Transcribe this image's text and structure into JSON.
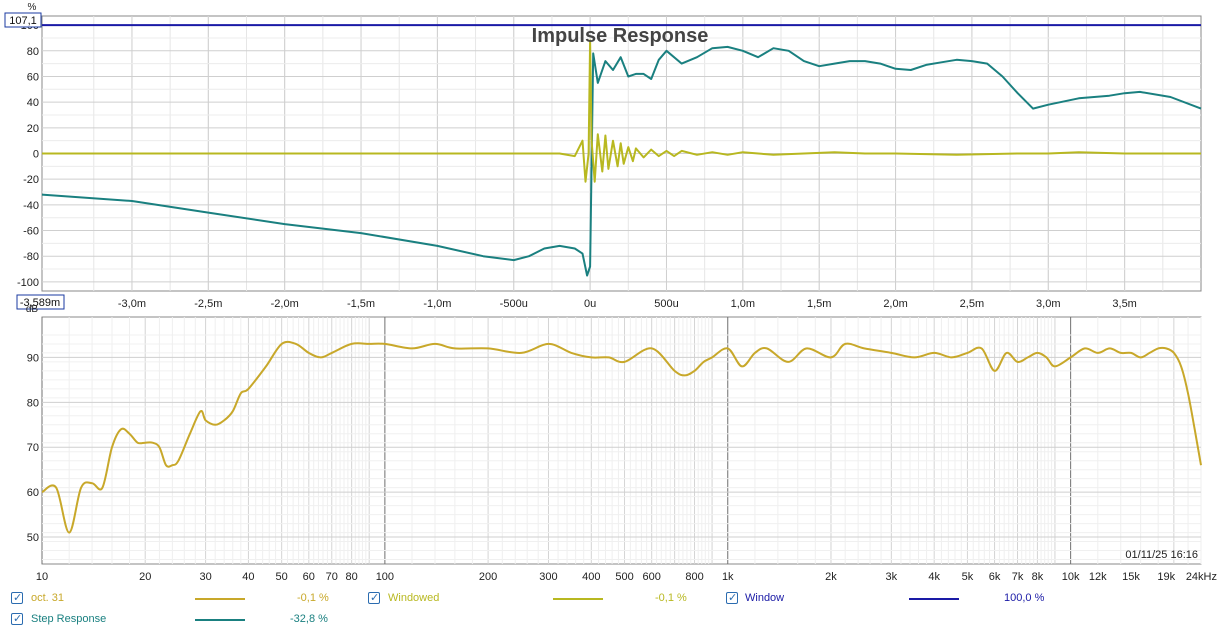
{
  "chart_data": [
    {
      "type": "line",
      "title": "Impulse Response",
      "x_unit": "s",
      "y_unit": "%",
      "xlim": [
        -0.003589,
        0.004
      ],
      "ylim": [
        -107.1,
        107.1
      ],
      "y_ticks": [
        100,
        80,
        60,
        40,
        20,
        0,
        -20,
        -40,
        -60,
        -80,
        -100
      ],
      "y_tick_labels": [
        "100",
        "80",
        "60",
        "40",
        "20",
        "0",
        "-20",
        "-40",
        "-60",
        "-80",
        "-100"
      ],
      "x_ticks": [
        -0.003,
        -0.0025,
        -0.002,
        -0.0015,
        -0.001,
        -0.0005,
        0,
        0.0005,
        0.001,
        0.0015,
        0.002,
        0.0025,
        0.003,
        0.0035
      ],
      "x_tick_labels": [
        "-3,0m",
        "-2,5m",
        "-2,0m",
        "-1,5m",
        "-1,0m",
        "-500u",
        "0u",
        "500u",
        "1,0m",
        "1,5m",
        "2,0m",
        "2,5m",
        "3,0m",
        "3,5m"
      ],
      "y_max_label": "107,1",
      "x_min_label": "-3,589m",
      "y_unit_label": "%",
      "grid": true,
      "series": [
        {
          "name": "Window",
          "color": "#1a1aa6",
          "x": [
            -0.003589,
            0.004
          ],
          "y": [
            100,
            100
          ]
        },
        {
          "name": "Step Response",
          "color": "#1a8080",
          "x": [
            -0.003589,
            -0.003,
            -0.0025,
            -0.002,
            -0.0015,
            -0.001,
            -0.0007,
            -0.0005,
            -0.0004,
            -0.0003,
            -0.0002,
            -0.0001,
            -5e-05,
            -2e-05,
            0,
            2e-05,
            5e-05,
            0.0001,
            0.00015,
            0.0002,
            0.00025,
            0.0003,
            0.00035,
            0.0004,
            0.00045,
            0.0005,
            0.0006,
            0.0007,
            0.0008,
            0.0009,
            0.001,
            0.0011,
            0.0012,
            0.0013,
            0.0014,
            0.0015,
            0.0016,
            0.0017,
            0.0018,
            0.0019,
            0.002,
            0.0021,
            0.0022,
            0.0023,
            0.0024,
            0.0025,
            0.0026,
            0.0027,
            0.0028,
            0.0029,
            0.003,
            0.0032,
            0.0034,
            0.0035,
            0.0036,
            0.0038,
            0.004
          ],
          "y": [
            -32,
            -37,
            -46,
            -55,
            -62,
            -72,
            -80,
            -83,
            -80,
            -74,
            -72,
            -74,
            -78,
            -95,
            -88,
            78,
            55,
            72,
            65,
            75,
            60,
            62,
            62,
            58,
            73,
            80,
            70,
            75,
            82,
            83,
            80,
            75,
            82,
            80,
            72,
            68,
            70,
            72,
            72,
            70,
            66,
            65,
            69,
            71,
            73,
            72,
            70,
            60,
            47,
            35,
            38,
            43,
            45,
            47,
            48,
            44,
            35
          ]
        },
        {
          "name": "Windowed",
          "color": "#b8b820",
          "x": [
            -0.003589,
            -0.003,
            -0.0025,
            -0.002,
            -0.0015,
            -0.001,
            -0.0007,
            -0.0005,
            -0.0004,
            -0.0003,
            -0.0002,
            -0.0001,
            -5e-05,
            -3e-05,
            -1e-05,
            0,
            1e-05,
            3e-05,
            5e-05,
            8e-05,
            0.0001,
            0.00012,
            0.00015,
            0.00018,
            0.0002,
            0.00022,
            0.00025,
            0.00028,
            0.0003,
            0.00035,
            0.0004,
            0.00045,
            0.0005,
            0.00055,
            0.0006,
            0.0007,
            0.0008,
            0.0009,
            0.001,
            0.0012,
            0.0014,
            0.0016,
            0.0018,
            0.002,
            0.0024,
            0.0028,
            0.003,
            0.0032,
            0.0035,
            0.004
          ],
          "y": [
            0,
            0,
            0,
            0,
            0,
            0,
            0,
            0,
            0,
            0,
            0,
            -2,
            10,
            -22,
            0,
            88,
            10,
            -22,
            15,
            -14,
            14,
            -12,
            10,
            -10,
            8,
            -8,
            5,
            -6,
            4,
            -3,
            3,
            -2,
            2,
            -2,
            2,
            -1,
            1,
            -1,
            1,
            -1,
            0,
            1,
            0,
            0,
            -1,
            0,
            0,
            1,
            0,
            0
          ]
        }
      ]
    },
    {
      "type": "line",
      "x_scale": "log",
      "x_unit": "Hz",
      "y_unit": "dB",
      "xlim": [
        10,
        24000
      ],
      "ylim": [
        44,
        99
      ],
      "y_ticks": [
        90,
        80,
        70,
        60,
        50
      ],
      "y_tick_labels": [
        "90",
        "80",
        "70",
        "60",
        "50"
      ],
      "x_ticks": [
        10,
        20,
        30,
        40,
        50,
        60,
        70,
        80,
        100,
        200,
        300,
        400,
        500,
        600,
        800,
        1000,
        2000,
        3000,
        4000,
        5000,
        6000,
        7000,
        8000,
        10000,
        12000,
        15000,
        19000,
        24000
      ],
      "x_tick_labels": [
        "10",
        "20",
        "30",
        "40",
        "50",
        "60",
        "70",
        "80",
        "100",
        "200",
        "300",
        "400",
        "500",
        "600",
        "800",
        "1k",
        "2k",
        "3k",
        "4k",
        "5k",
        "6k",
        "7k",
        "8k",
        "10k",
        "12k",
        "15k",
        "19k",
        "24kHz"
      ],
      "y_unit_label": "dB",
      "timestamp": "01/11/25 16:16",
      "grid": true,
      "series": [
        {
          "name": "oct. 31",
          "color": "#c8a82a",
          "x": [
            10,
            11,
            12,
            13,
            14,
            15,
            16,
            17,
            18,
            19,
            20,
            21,
            22,
            23,
            24,
            25,
            27,
            29,
            30,
            32,
            34,
            36,
            38,
            40,
            45,
            50,
            55,
            60,
            65,
            70,
            80,
            90,
            100,
            120,
            140,
            160,
            200,
            250,
            300,
            350,
            400,
            450,
            500,
            600,
            700,
            750,
            800,
            850,
            900,
            1000,
            1100,
            1200,
            1300,
            1500,
            1700,
            2000,
            2200,
            2500,
            3000,
            3500,
            4000,
            4500,
            5000,
            5500,
            6000,
            6500,
            7000,
            7500,
            8000,
            8500,
            9000,
            10000,
            11000,
            12000,
            13000,
            14000,
            15000,
            16000,
            17000,
            18000,
            19000,
            20000,
            21000,
            22000,
            23000,
            24000
          ],
          "y": [
            60,
            61,
            51,
            61,
            62,
            61,
            70,
            74,
            73,
            71,
            71,
            71,
            70,
            66,
            66,
            67,
            73,
            78,
            76,
            75,
            76,
            78,
            82,
            83,
            88,
            93,
            93,
            91,
            90,
            91,
            93,
            93,
            93,
            92,
            93,
            92,
            92,
            91,
            93,
            91,
            90,
            90,
            89,
            92,
            87,
            86,
            87,
            89,
            90,
            92,
            88,
            91,
            92,
            89,
            92,
            90,
            93,
            92,
            91,
            90,
            91,
            90,
            91,
            92,
            87,
            91,
            89,
            90,
            91,
            90,
            88,
            90,
            92,
            91,
            92,
            91,
            91,
            90,
            91,
            92,
            92,
            91,
            88,
            82,
            74,
            66
          ]
        }
      ]
    }
  ],
  "legend": [
    {
      "name": "oct. 31",
      "value": "-0,1 %",
      "color": "#c8a82a"
    },
    {
      "name": "Windowed",
      "value": "-0,1 %",
      "color": "#b8b820"
    },
    {
      "name": "Window",
      "value": "100,0 %",
      "color": "#1a1aa6"
    },
    {
      "name": "Step Response",
      "value": "-32,8 %",
      "color": "#1a8080"
    }
  ]
}
